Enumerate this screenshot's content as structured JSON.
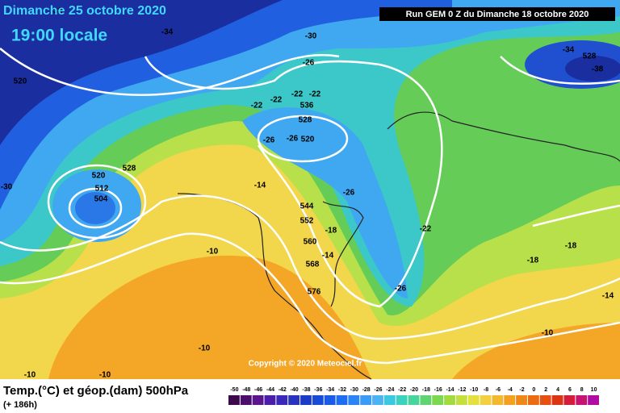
{
  "header": {
    "date": "Dimanche 25 octobre 2020",
    "time": "19:00 locale",
    "run": "Run GEM 0 Z du Dimanche 18 octobre 2020"
  },
  "copyright": "Copyright © 2020 Meteociel.fr",
  "footer": {
    "title": "Temp.(°C) et géop.(dam) 500hPa",
    "lead": "(+ 186h)"
  },
  "map_labels": [
    "-38",
    "-34",
    "-30",
    "-34",
    "528",
    "-38",
    "520",
    "-26",
    "-22",
    "-22",
    "-22",
    "-22",
    "536",
    "528",
    "-26",
    "-26",
    "520",
    "-30",
    "520",
    "528",
    "512",
    "504",
    "-14",
    "-26",
    "544",
    "552",
    "-18",
    "-22",
    "-10",
    "560",
    "-14",
    "568",
    "-18",
    "-18",
    "576",
    "-26",
    "-14",
    "-10",
    "-10",
    "-10",
    "-10"
  ],
  "legend": {
    "ticks": [
      -50,
      -48,
      -46,
      -44,
      -42,
      -40,
      -38,
      -36,
      -34,
      -32,
      -30,
      -28,
      -26,
      -24,
      -22,
      -20,
      -18,
      -16,
      -14,
      -12,
      -10,
      -8,
      -6,
      -4,
      -2,
      0,
      2,
      4,
      6,
      8,
      10
    ],
    "colors": [
      "#3a0a4a",
      "#4a0f6a",
      "#5a168a",
      "#4a1ea8",
      "#3a28b8",
      "#2a32c0",
      "#1c3cc8",
      "#1a4ad8",
      "#1a5ae6",
      "#1e6cf0",
      "#2a84f4",
      "#3a9cf6",
      "#4ab4f4",
      "#3cc8e0",
      "#3cd2c0",
      "#48d49a",
      "#60d470",
      "#7cd84e",
      "#a0dc40",
      "#c4e03c",
      "#e4e040",
      "#f2d040",
      "#f4b830",
      "#f4a020",
      "#f08818",
      "#ec6c14",
      "#e65010",
      "#dc3414",
      "#d41c3c",
      "#c81470",
      "#b00ca0"
    ]
  }
}
